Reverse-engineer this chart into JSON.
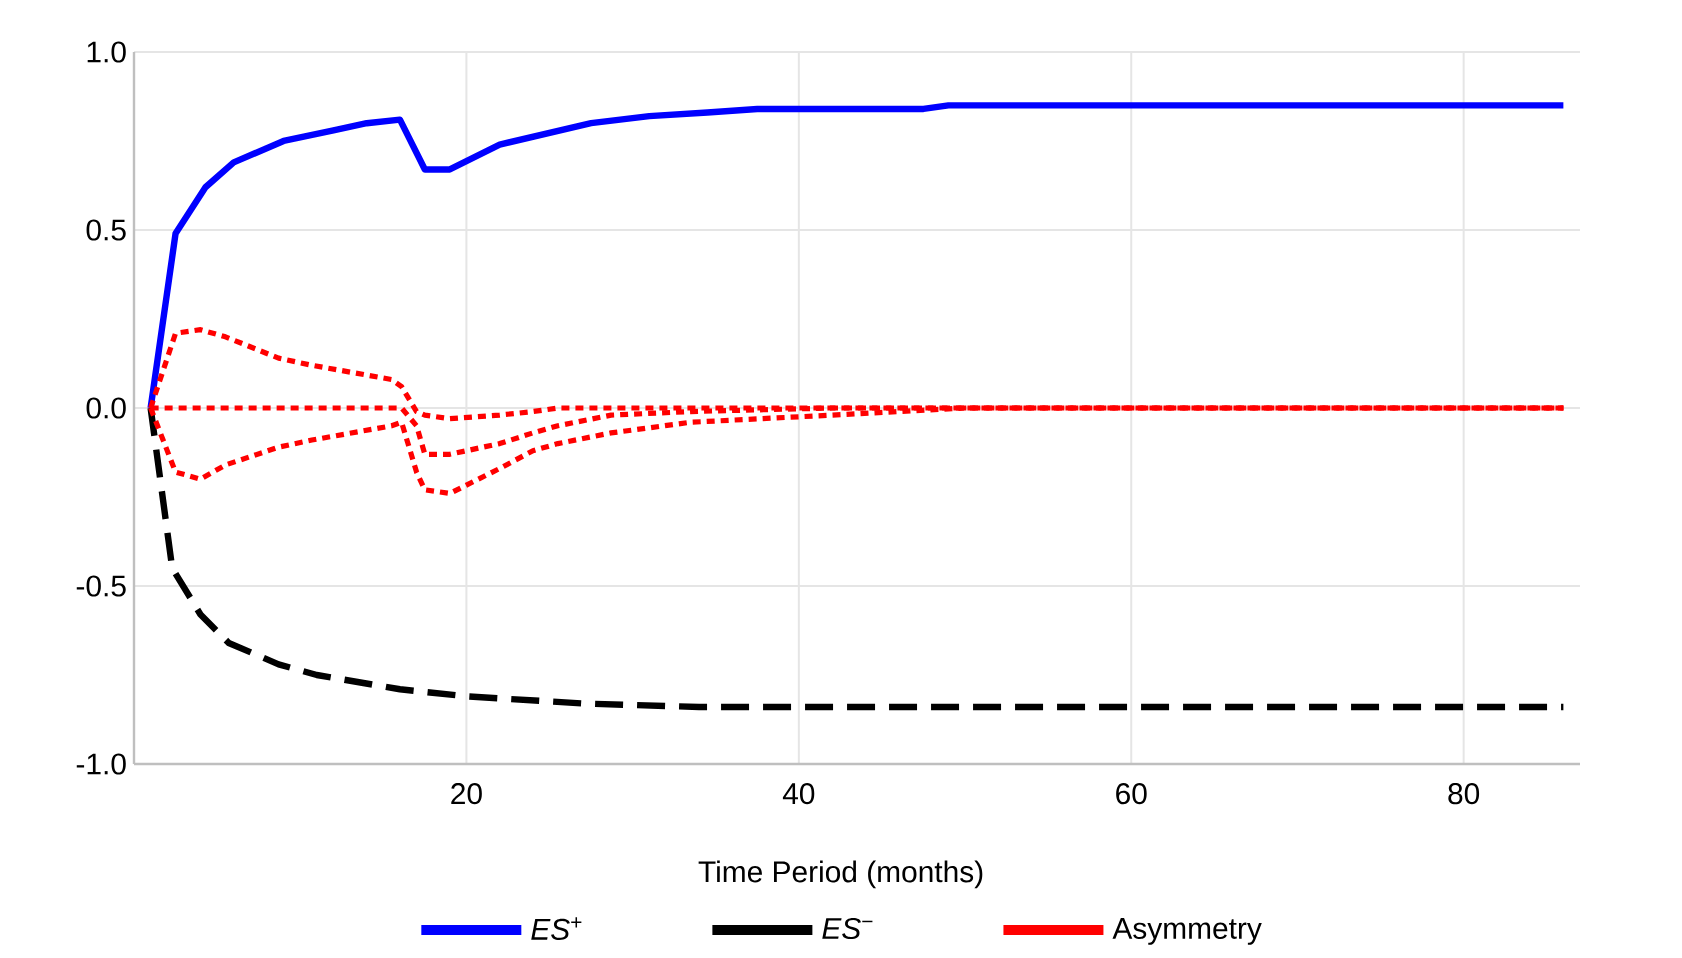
{
  "chart_data": {
    "type": "line",
    "xlabel": "Time Period (months)",
    "xlim": [
      0,
      87
    ],
    "xticks": [
      20,
      40,
      60,
      80
    ],
    "ylim": [
      -1,
      1
    ],
    "yticks": [
      {
        "value": -1,
        "label": "-1.0"
      },
      {
        "value": -0.5,
        "label": "-0.5"
      },
      {
        "value": 0,
        "label": "0.0"
      },
      {
        "value": 0.5,
        "label": "0.5"
      },
      {
        "value": 1,
        "label": "1.0"
      }
    ],
    "grid": true,
    "legend": "bottom",
    "series": [
      {
        "name": "*ES*$^{+}$",
        "color": "#0000ff",
        "line_style": "solid",
        "x": [
          1,
          2.5,
          4.3,
          6,
          9,
          12,
          14,
          16,
          17.5,
          19,
          22,
          27.5,
          31,
          34.5,
          37.5,
          41,
          47.5,
          49,
          86
        ],
        "values": [
          0,
          0.49,
          0.62,
          0.69,
          0.75,
          0.78,
          0.8,
          0.81,
          0.67,
          0.67,
          0.74,
          0.8,
          0.82,
          0.83,
          0.84,
          0.84,
          0.84,
          0.85,
          0.85
        ]
      },
      {
        "name": "*ES*$^{−}$",
        "color": "#000000",
        "line_style": "dashed",
        "x": [
          1,
          2.3,
          4,
          5.7,
          8.7,
          11,
          16,
          20,
          27,
          34,
          86
        ],
        "values": [
          0,
          -0.45,
          -0.58,
          -0.66,
          -0.72,
          -0.75,
          -0.79,
          -0.81,
          -0.83,
          -0.84,
          -0.84
        ]
      },
      {
        "name": "Asymmetry",
        "color": "#ff0000",
        "line_style": "dotted",
        "x": [
          1,
          2.5,
          4,
          5.5,
          8.7,
          10.7,
          15.5,
          16.1,
          17,
          17.5,
          19,
          22,
          24,
          25.5,
          28.7,
          33.5,
          42,
          50,
          86
        ],
        "values": [
          0,
          0,
          0,
          0,
          0,
          0,
          0,
          0,
          -0.05,
          -0.13,
          -0.13,
          -0.1,
          -0.07,
          -0.05,
          -0.02,
          -0.01,
          0,
          0,
          0
        ]
      },
      {
        "color": "#ff0000",
        "line_style": "dotted",
        "x": [
          1,
          2.5,
          4,
          5.5,
          8.7,
          10.7,
          15.5,
          16.1,
          17,
          17.5,
          19,
          22,
          24,
          25.5,
          28.7,
          33.5,
          42,
          50,
          86
        ],
        "values": [
          0,
          0.21,
          0.22,
          0.2,
          0.14,
          0.12,
          0.08,
          0.06,
          -0.01,
          -0.02,
          -0.03,
          -0.02,
          -0.01,
          0,
          0,
          0,
          0,
          0,
          0
        ]
      },
      {
        "color": "#ff0000",
        "line_style": "dotted",
        "x": [
          1,
          2.5,
          4,
          5.5,
          8.7,
          10.7,
          15.5,
          16.1,
          17,
          17.5,
          19,
          22,
          24,
          25.5,
          28.7,
          33.5,
          42,
          50,
          86
        ],
        "values": [
          0,
          -0.18,
          -0.2,
          -0.16,
          -0.11,
          -0.09,
          -0.05,
          -0.04,
          -0.18,
          -0.23,
          -0.24,
          -0.17,
          -0.12,
          -0.1,
          -0.07,
          -0.04,
          -0.02,
          0,
          0
        ]
      }
    ]
  }
}
